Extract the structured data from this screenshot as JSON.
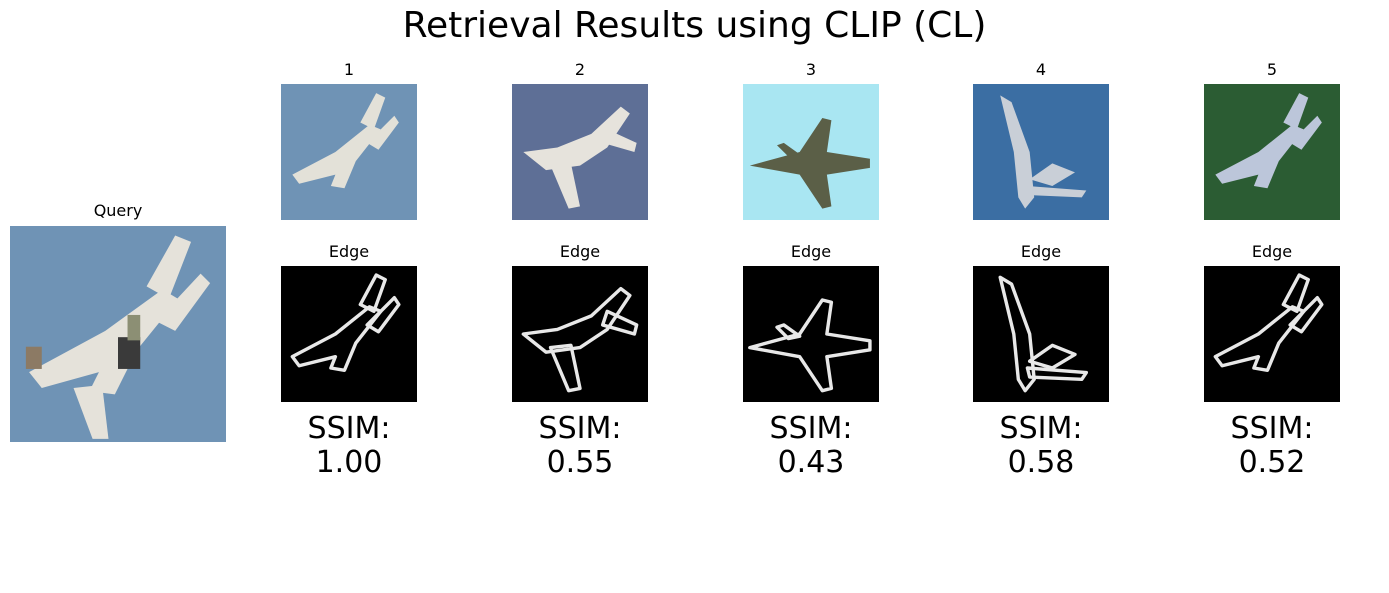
{
  "title": "Retrieval Results using CLIP (CL)",
  "query": {
    "label": "Query",
    "sky_color": "#6f93b5"
  },
  "results": [
    {
      "rank": "1",
      "edge_label": "Edge",
      "ssim_label": "SSIM:",
      "ssim_value": "1.00",
      "bg": "#6f93b5",
      "plane": "#e3e1d8",
      "icon": "jet-airplane-icon"
    },
    {
      "rank": "2",
      "edge_label": "Edge",
      "ssim_label": "SSIM:",
      "ssim_value": "0.55",
      "bg": "#5e6f96",
      "plane": "#e6e3dc",
      "icon": "propeller-airplane-icon"
    },
    {
      "rank": "3",
      "edge_label": "Edge",
      "ssim_label": "SSIM:",
      "ssim_value": "0.43",
      "bg": "#a9e6f2",
      "plane": "#5b5f47",
      "icon": "fighter-jet-icon"
    },
    {
      "rank": "4",
      "edge_label": "Edge",
      "ssim_label": "SSIM:",
      "ssim_value": "0.58",
      "bg": "#3b6ea3",
      "plane": "#c9cfd7",
      "icon": "bird-icon"
    },
    {
      "rank": "5",
      "edge_label": "Edge",
      "ssim_label": "SSIM:",
      "ssim_value": "0.52",
      "bg": "#2b5c33",
      "plane": "#bcc6da",
      "icon": "jet-airplane-icon"
    }
  ]
}
